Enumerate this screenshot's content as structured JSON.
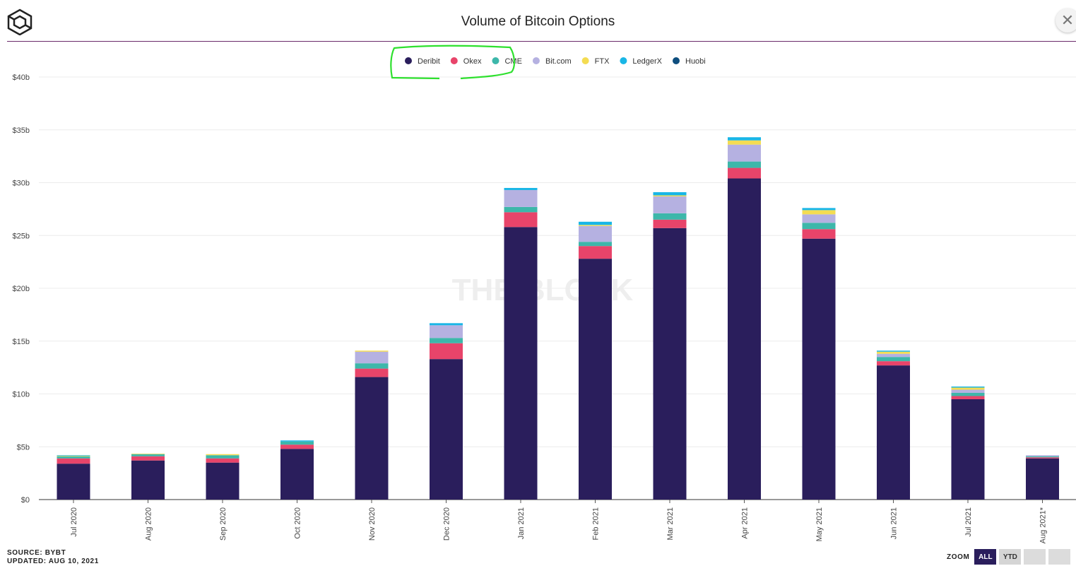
{
  "header": {
    "title": "Volume of Bitcoin Options",
    "close_symbol": "✕"
  },
  "footer": {
    "source": "SOURCE: BYBT",
    "updated": "UPDATED: AUG 10, 2021"
  },
  "zoom": {
    "label": "ZOOM",
    "buttons": [
      "ALL",
      "YTD",
      "",
      ""
    ],
    "active": "ALL"
  },
  "watermark": "THE BLOCK",
  "colors": {
    "annotation": "#2ee02e",
    "divider": "#6a2a6a",
    "zoom_active": "#2a1e5c"
  },
  "chart_data": {
    "type": "bar",
    "stacked": true,
    "title": "Volume of Bitcoin Options",
    "xlabel": "",
    "ylabel": "",
    "ylim": [
      0,
      40
    ],
    "yticks": [
      0,
      5,
      10,
      15,
      20,
      25,
      30,
      35,
      40
    ],
    "ytick_labels": [
      "$0",
      "$5b",
      "$10b",
      "$15b",
      "$20b",
      "$25b",
      "$30b",
      "$35b",
      "$40b"
    ],
    "grid": true,
    "legend_position": "top-center",
    "categories": [
      "Jul 2020",
      "Aug 2020",
      "Sep 2020",
      "Oct 2020",
      "Nov 2020",
      "Dec 2020",
      "Jan 2021",
      "Feb 2021",
      "Mar 2021",
      "Apr 2021",
      "May 2021",
      "Jun 2021",
      "Jul 2021",
      "Aug 2021*"
    ],
    "series": [
      {
        "name": "Deribit",
        "color": "#2a1e5c",
        "values": [
          3.4,
          3.7,
          3.5,
          4.8,
          11.6,
          13.3,
          25.8,
          22.8,
          25.7,
          30.4,
          24.7,
          12.7,
          9.5,
          3.9
        ]
      },
      {
        "name": "Okex",
        "color": "#e8446a",
        "values": [
          0.5,
          0.4,
          0.4,
          0.4,
          0.8,
          1.5,
          1.4,
          1.2,
          0.8,
          1.0,
          0.9,
          0.4,
          0.3,
          0.1
        ]
      },
      {
        "name": "CME",
        "color": "#3db7aa",
        "values": [
          0.2,
          0.2,
          0.3,
          0.3,
          0.5,
          0.5,
          0.5,
          0.4,
          0.6,
          0.6,
          0.6,
          0.4,
          0.3,
          0.1
        ]
      },
      {
        "name": "Bit.com",
        "color": "#b5b1e1",
        "values": [
          0.0,
          0.0,
          0.0,
          0.0,
          1.1,
          1.2,
          1.6,
          1.5,
          1.6,
          1.6,
          0.8,
          0.3,
          0.3,
          0.1
        ]
      },
      {
        "name": "FTX",
        "color": "#f4dc52",
        "values": [
          0.05,
          0.05,
          0.1,
          0.0,
          0.1,
          0.0,
          0.0,
          0.1,
          0.1,
          0.4,
          0.4,
          0.2,
          0.2,
          0.0
        ]
      },
      {
        "name": "LedgerX",
        "color": "#19b6e6",
        "values": [
          0.05,
          0.0,
          0.0,
          0.1,
          0.0,
          0.2,
          0.2,
          0.3,
          0.3,
          0.3,
          0.2,
          0.1,
          0.1,
          0.0
        ]
      },
      {
        "name": "Huobi",
        "color": "#0e4e7e",
        "values": [
          0.0,
          0.0,
          0.0,
          0.0,
          0.0,
          0.0,
          0.0,
          0.0,
          0.0,
          0.0,
          0.0,
          0.0,
          0.0,
          0.0
        ]
      }
    ]
  }
}
